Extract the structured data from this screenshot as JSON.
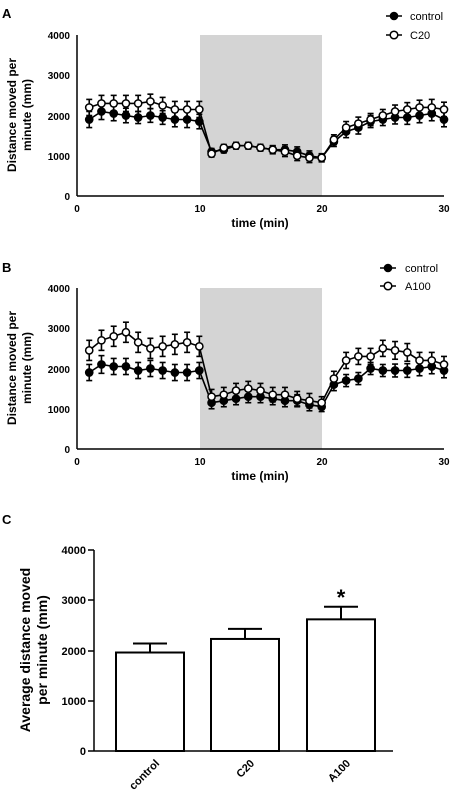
{
  "chart_data": [
    {
      "panel": "A",
      "type": "line",
      "xlabel": "time (min)",
      "ylabel": "Distance moved per minute (mm)",
      "xlim": [
        0,
        30
      ],
      "ylim": [
        0,
        4000
      ],
      "x_ticks": [
        "0",
        "10",
        "20",
        "30"
      ],
      "y_ticks": [
        "0",
        "1000",
        "2000",
        "3000",
        "4000"
      ],
      "shaded_region": [
        10,
        20
      ],
      "shaded_color": "#d4d4d4",
      "legend_position": "top-right",
      "x": [
        1,
        2,
        3,
        4,
        5,
        6,
        7,
        8,
        9,
        10,
        11,
        12,
        13,
        14,
        15,
        16,
        17,
        18,
        19,
        20,
        21,
        22,
        23,
        24,
        25,
        26,
        27,
        28,
        29,
        30
      ],
      "series": [
        {
          "name": "control",
          "marker": "filled-circle",
          "values": [
            1900,
            2100,
            2050,
            2000,
            1950,
            2000,
            1950,
            1900,
            1900,
            1850,
            1100,
            1150,
            1250,
            1250,
            1200,
            1150,
            1150,
            1100,
            1000,
            950,
            1350,
            1600,
            1700,
            1850,
            1900,
            1950,
            1950,
            2000,
            2050,
            1900
          ],
          "errors": [
            200,
            200,
            180,
            180,
            150,
            170,
            170,
            180,
            200,
            180,
            80,
            80,
            80,
            80,
            80,
            100,
            120,
            120,
            120,
            100,
            120,
            150,
            160,
            150,
            150,
            160,
            170,
            180,
            180,
            180
          ]
        },
        {
          "name": "C20",
          "marker": "open-circle",
          "values": [
            2200,
            2300,
            2300,
            2300,
            2300,
            2350,
            2250,
            2150,
            2150,
            2150,
            1050,
            1200,
            1250,
            1250,
            1200,
            1150,
            1100,
            1000,
            950,
            950,
            1400,
            1700,
            1800,
            1900,
            2000,
            2100,
            2150,
            2200,
            2200,
            2150
          ],
          "errors": [
            200,
            200,
            200,
            200,
            200,
            180,
            200,
            200,
            200,
            200,
            80,
            80,
            80,
            80,
            80,
            100,
            120,
            120,
            120,
            100,
            120,
            150,
            160,
            150,
            150,
            160,
            170,
            180,
            200,
            180
          ]
        }
      ]
    },
    {
      "panel": "B",
      "type": "line",
      "xlabel": "time (min)",
      "ylabel": "Distance moved per minute (mm)",
      "xlim": [
        0,
        30
      ],
      "ylim": [
        0,
        4000
      ],
      "x_ticks": [
        "0",
        "10",
        "20",
        "30"
      ],
      "y_ticks": [
        "0",
        "1000",
        "2000",
        "3000",
        "4000"
      ],
      "shaded_region": [
        10,
        20
      ],
      "shaded_color": "#d4d4d4",
      "legend_position": "top-right",
      "x": [
        1,
        2,
        3,
        4,
        5,
        6,
        7,
        8,
        9,
        10,
        11,
        12,
        13,
        14,
        15,
        16,
        17,
        18,
        19,
        20,
        21,
        22,
        23,
        24,
        25,
        26,
        27,
        28,
        29,
        30
      ],
      "series": [
        {
          "name": "control",
          "marker": "filled-circle",
          "values": [
            1900,
            2100,
            2050,
            2050,
            1950,
            2000,
            1950,
            1900,
            1900,
            1950,
            1150,
            1200,
            1250,
            1300,
            1300,
            1250,
            1200,
            1200,
            1100,
            1050,
            1600,
            1700,
            1750,
            2000,
            1950,
            1950,
            1950,
            2000,
            2050,
            1950
          ],
          "errors": [
            200,
            220,
            200,
            200,
            200,
            200,
            200,
            200,
            200,
            200,
            150,
            150,
            150,
            150,
            150,
            150,
            150,
            150,
            150,
            120,
            150,
            150,
            150,
            150,
            150,
            160,
            170,
            180,
            180,
            180
          ]
        },
        {
          "name": "A100",
          "marker": "open-circle",
          "values": [
            2450,
            2700,
            2800,
            2900,
            2650,
            2500,
            2550,
            2600,
            2650,
            2550,
            1300,
            1350,
            1450,
            1500,
            1450,
            1350,
            1350,
            1250,
            1200,
            1150,
            1750,
            2200,
            2300,
            2300,
            2500,
            2450,
            2400,
            2200,
            2200,
            2100
          ],
          "errors": [
            250,
            250,
            250,
            250,
            250,
            250,
            250,
            250,
            250,
            250,
            180,
            180,
            180,
            180,
            180,
            180,
            180,
            180,
            180,
            150,
            180,
            200,
            200,
            200,
            200,
            220,
            220,
            200,
            200,
            200
          ]
        }
      ]
    },
    {
      "panel": "C",
      "type": "bar",
      "ylabel": "Average distance moved per minute (mm)",
      "ylim": [
        0,
        4000
      ],
      "y_ticks": [
        "0",
        "1000",
        "2000",
        "3000",
        "4000"
      ],
      "categories": [
        "control",
        "C20",
        "A100"
      ],
      "values": [
        1960,
        2230,
        2620
      ],
      "errors": [
        180,
        200,
        250
      ],
      "annotations": [
        {
          "category": "A100",
          "text": "*"
        }
      ],
      "bar_fill": "#ffffff",
      "bar_edge": "#000000"
    }
  ]
}
